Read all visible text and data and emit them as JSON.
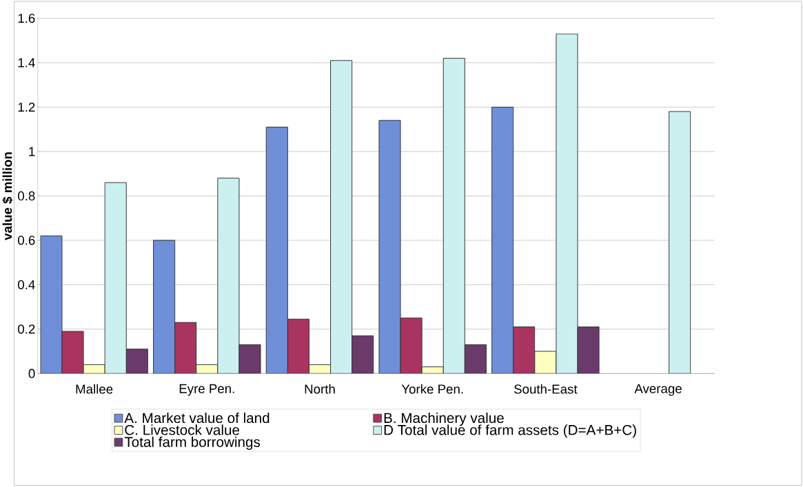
{
  "chart_data": {
    "type": "bar",
    "ylabel": "value $ million",
    "categories": [
      "Mallee",
      "Eyre Pen.",
      "North",
      "Yorke Pen.",
      "South-East",
      "Average"
    ],
    "series": [
      {
        "name": "A. Market value of land",
        "color": "#6f8fd8",
        "values": [
          0.62,
          0.6,
          1.11,
          1.14,
          1.2,
          null
        ]
      },
      {
        "name": "B. Machinery value",
        "color": "#a8345f",
        "values": [
          0.19,
          0.23,
          0.245,
          0.25,
          0.21,
          null
        ]
      },
      {
        "name": "C. Livestock value",
        "color": "#ffffc0",
        "values": [
          0.04,
          0.04,
          0.04,
          0.03,
          0.1,
          null
        ]
      },
      {
        "name": "D Total value of farm assets (D=A+B+C)",
        "color": "#ccf0f0",
        "values": [
          0.86,
          0.88,
          1.41,
          1.42,
          1.53,
          1.18
        ]
      },
      {
        "name": "Total farm borrowings",
        "color": "#6a3a6a",
        "values": [
          0.11,
          0.13,
          0.17,
          0.13,
          0.21,
          null
        ]
      }
    ],
    "ylim": [
      0,
      1.6
    ],
    "yticks": [
      0,
      0.2,
      0.4,
      0.6,
      0.8,
      1,
      1.2,
      1.4,
      1.6
    ],
    "grid": "y",
    "legend": "bottom"
  }
}
